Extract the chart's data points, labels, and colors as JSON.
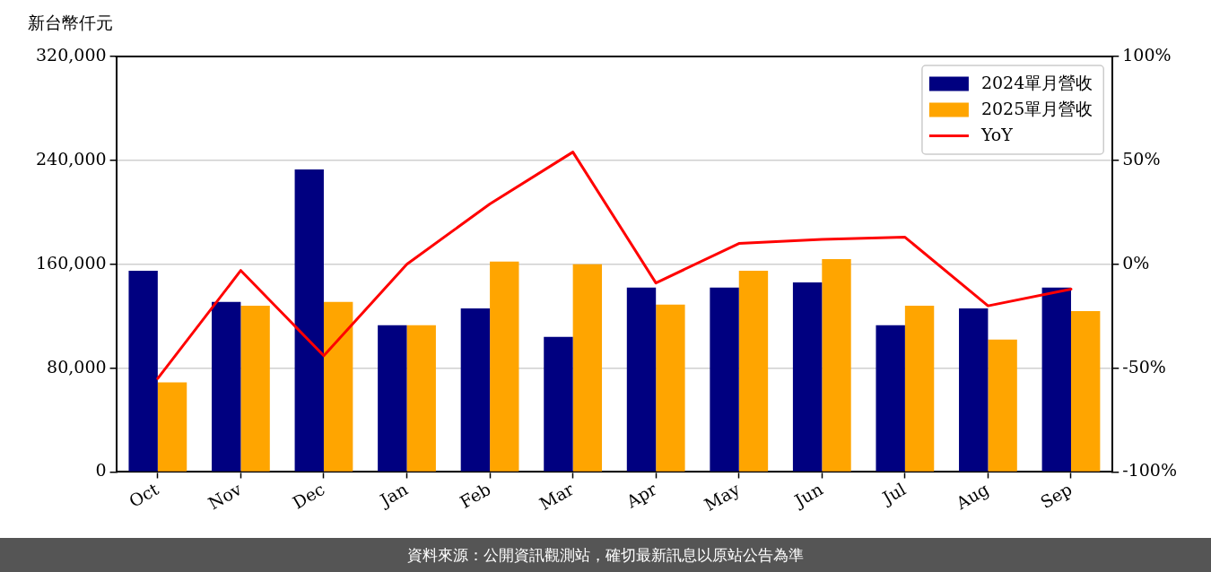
{
  "chart_data": {
    "type": "bar",
    "ylabel": "新台幣仟元",
    "annotations": [
      "資料來源：公開資訊觀測站，確切最新訊息以原站公告為準"
    ],
    "categories": [
      "Oct",
      "Nov",
      "Dec",
      "Jan",
      "Feb",
      "Mar",
      "Apr",
      "May",
      "Jun",
      "Jul",
      "Aug",
      "Sep"
    ],
    "series": [
      {
        "name": "2024單月營收",
        "color": "#000080",
        "values": [
          155000,
          131000,
          233000,
          113000,
          126000,
          104000,
          142000,
          142000,
          146000,
          113000,
          126000,
          142000
        ]
      },
      {
        "name": "2025單月營收",
        "color": "#ffa500",
        "values": [
          69000,
          128000,
          131000,
          113000,
          162000,
          160000,
          129000,
          155000,
          164000,
          128000,
          102000,
          124000
        ]
      },
      {
        "name": "YoY",
        "type": "line",
        "axis": "y2",
        "color": "#ff0000",
        "values": [
          -55,
          -3,
          -44,
          0,
          29,
          54,
          -9,
          10,
          12,
          13,
          -20,
          -12
        ]
      }
    ],
    "ylim": [
      0,
      320000
    ],
    "yticks": [
      0,
      {
        "value": 80000,
        "label": "80,000"
      },
      {
        "value": 160000,
        "label": "160,000"
      },
      {
        "value": 240000,
        "label": "240,000"
      },
      {
        "value": 320000,
        "label": "320,000"
      }
    ],
    "y2lim": [
      -100,
      100
    ],
    "y2ticks": [
      {
        "value": -100,
        "label": "-100%"
      },
      {
        "value": -50,
        "label": "-50%"
      },
      {
        "value": 0,
        "label": "0%"
      },
      {
        "value": 50,
        "label": "50%"
      },
      {
        "value": 100,
        "label": "100%"
      }
    ],
    "grid": "y",
    "legend": "top right",
    "marker": "none",
    "line_style": "solid"
  }
}
